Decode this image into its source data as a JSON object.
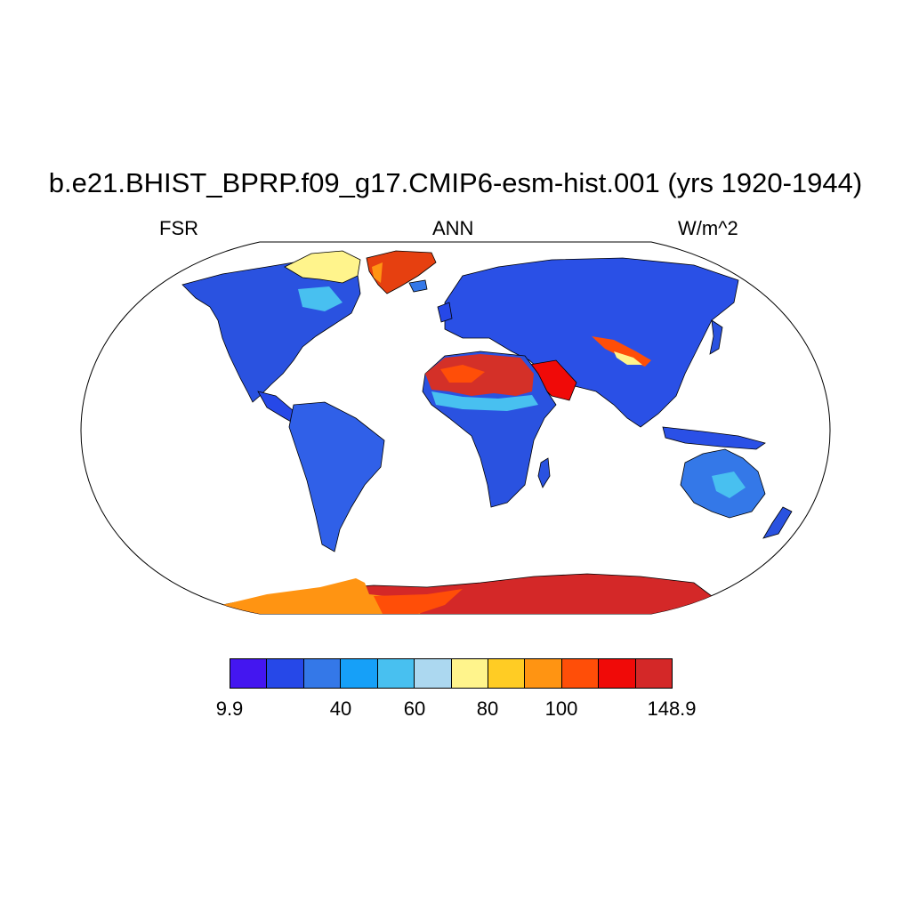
{
  "title": "b.e21.BHIST_BPRP.f09_g17.CMIP6-esm-hist.001 (yrs 1920-1944)",
  "variable": "FSR",
  "season": "ANN",
  "units": "W/m^2",
  "colorbar": {
    "colors": [
      "#4416f0",
      "#2648e8",
      "#3478e8",
      "#16a0f8",
      "#48c0f0",
      "#acd8f0",
      "#fff48c",
      "#ffcc24",
      "#ff9412",
      "#ff4e08",
      "#f00a08",
      "#d42828"
    ],
    "labels": [
      "9.9",
      "40",
      "60",
      "80",
      "100",
      "148.9"
    ]
  },
  "colors": {
    "ocean": "#ffffff",
    "coast": "#000000",
    "greenland": "#e64010",
    "desert": "#d43028",
    "antarctica": "#e03020"
  }
}
